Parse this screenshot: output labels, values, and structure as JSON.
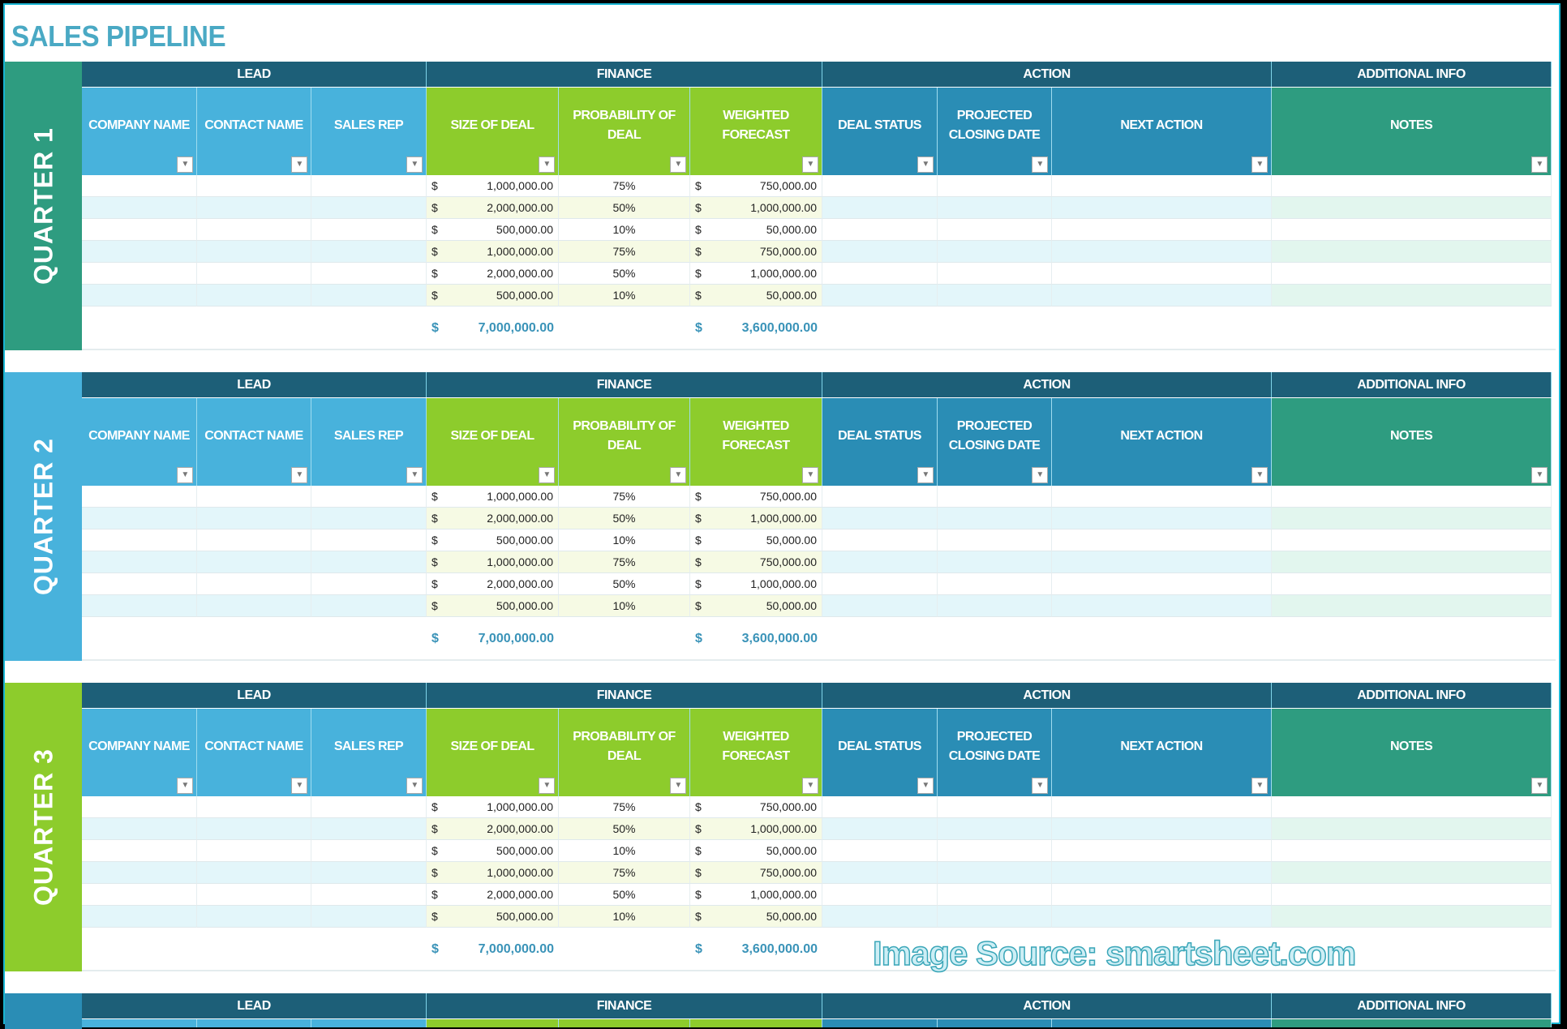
{
  "title": "SALES PIPELINE",
  "watermark": "Image Source: smartsheet.com",
  "colors": {
    "group_header": "#1d5f78",
    "lead": "#48b2dc",
    "finance": "#8dcc2c",
    "action": "#2a8db5",
    "additional": "#2e9c80",
    "total_text": "#3a93b8"
  },
  "groups": [
    {
      "label": "LEAD",
      "span": 3
    },
    {
      "label": "FINANCE",
      "span": 3
    },
    {
      "label": "ACTION",
      "span": 3
    },
    {
      "label": "ADDITIONAL INFO",
      "span": 1
    }
  ],
  "columns": [
    {
      "label": "COMPANY NAME",
      "group": "lead"
    },
    {
      "label": "CONTACT NAME",
      "group": "lead"
    },
    {
      "label": "SALES REP",
      "group": "lead"
    },
    {
      "label": "SIZE OF DEAL",
      "group": "finance"
    },
    {
      "label": "PROBABILITY OF DEAL",
      "group": "finance"
    },
    {
      "label": "WEIGHTED FORECAST",
      "group": "finance"
    },
    {
      "label": "DEAL STATUS",
      "group": "action"
    },
    {
      "label": "PROJECTED CLOSING DATE",
      "group": "action"
    },
    {
      "label": "NEXT ACTION",
      "group": "action"
    },
    {
      "label": "NOTES",
      "group": "additional"
    }
  ],
  "currency_symbol": "$",
  "quarters": [
    {
      "label": "QUARTER 1",
      "color": "#2e9c80",
      "rows": [
        {
          "size": "1,000,000.00",
          "prob": "75%",
          "weighted": "750,000.00"
        },
        {
          "size": "2,000,000.00",
          "prob": "50%",
          "weighted": "1,000,000.00"
        },
        {
          "size": "500,000.00",
          "prob": "10%",
          "weighted": "50,000.00"
        },
        {
          "size": "1,000,000.00",
          "prob": "75%",
          "weighted": "750,000.00"
        },
        {
          "size": "2,000,000.00",
          "prob": "50%",
          "weighted": "1,000,000.00"
        },
        {
          "size": "500,000.00",
          "prob": "10%",
          "weighted": "50,000.00"
        }
      ],
      "total_size": "7,000,000.00",
      "total_weighted": "3,600,000.00"
    },
    {
      "label": "QUARTER 2",
      "color": "#48b2dc",
      "rows": [
        {
          "size": "1,000,000.00",
          "prob": "75%",
          "weighted": "750,000.00"
        },
        {
          "size": "2,000,000.00",
          "prob": "50%",
          "weighted": "1,000,000.00"
        },
        {
          "size": "500,000.00",
          "prob": "10%",
          "weighted": "50,000.00"
        },
        {
          "size": "1,000,000.00",
          "prob": "75%",
          "weighted": "750,000.00"
        },
        {
          "size": "2,000,000.00",
          "prob": "50%",
          "weighted": "1,000,000.00"
        },
        {
          "size": "500,000.00",
          "prob": "10%",
          "weighted": "50,000.00"
        }
      ],
      "total_size": "7,000,000.00",
      "total_weighted": "3,600,000.00"
    },
    {
      "label": "QUARTER 3",
      "color": "#8dcc2c",
      "rows": [
        {
          "size": "1,000,000.00",
          "prob": "75%",
          "weighted": "750,000.00"
        },
        {
          "size": "2,000,000.00",
          "prob": "50%",
          "weighted": "1,000,000.00"
        },
        {
          "size": "500,000.00",
          "prob": "10%",
          "weighted": "50,000.00"
        },
        {
          "size": "1,000,000.00",
          "prob": "75%",
          "weighted": "750,000.00"
        },
        {
          "size": "2,000,000.00",
          "prob": "50%",
          "weighted": "1,000,000.00"
        },
        {
          "size": "500,000.00",
          "prob": "10%",
          "weighted": "50,000.00"
        }
      ],
      "total_size": "7,000,000.00",
      "total_weighted": "3,600,000.00"
    },
    {
      "label": "",
      "color": "#2a8db5",
      "rows": [],
      "total_size": null,
      "total_weighted": null
    }
  ]
}
